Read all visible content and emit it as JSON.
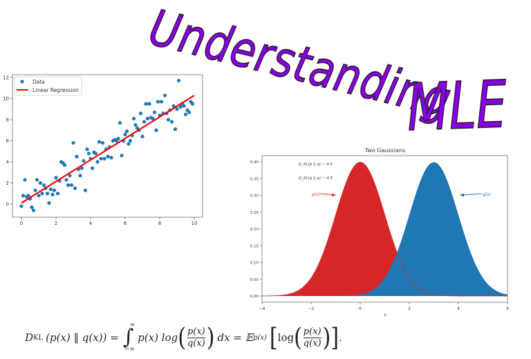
{
  "title": {
    "text": "Understanding MLE",
    "part1": "Understanding",
    "part2": "MLE",
    "fill_color": "#8a00e6",
    "stroke_color": "#2b1a33"
  },
  "chart_data": [
    {
      "type": "scatter",
      "title": "",
      "xlabel": "",
      "ylabel": "",
      "xlim": [
        -0.5,
        10.4
      ],
      "ylim": [
        -1.2,
        12.4
      ],
      "xticks": [
        "0",
        "2",
        "4",
        "6",
        "8",
        "10"
      ],
      "yticks": [
        "0",
        "2",
        "4",
        "6",
        "8",
        "10",
        "12"
      ],
      "legend": {
        "position": "upper left",
        "entries": [
          "Data",
          "Linear Regression"
        ]
      },
      "grid": false,
      "series": [
        {
          "name": "Data",
          "kind": "scatter",
          "color": "#1f77b4",
          "points": [
            [
              0.0,
              -0.2
            ],
            [
              0.1,
              0.8
            ],
            [
              0.2,
              2.3
            ],
            [
              0.3,
              0.7
            ],
            [
              0.4,
              0.8
            ],
            [
              0.5,
              0.5
            ],
            [
              0.6,
              -0.3
            ],
            [
              0.7,
              -0.6
            ],
            [
              0.8,
              1.3
            ],
            [
              0.9,
              2.3
            ],
            [
              1.0,
              0.8
            ],
            [
              1.1,
              2.0
            ],
            [
              1.2,
              1.0
            ],
            [
              1.3,
              1.8
            ],
            [
              1.4,
              1.5
            ],
            [
              1.5,
              1.0
            ],
            [
              1.6,
              0.1
            ],
            [
              1.7,
              1.4
            ],
            [
              1.8,
              0.9
            ],
            [
              1.9,
              1.3
            ],
            [
              2.0,
              2.5
            ],
            [
              2.1,
              1.0
            ],
            [
              2.2,
              2.2
            ],
            [
              2.3,
              4.0
            ],
            [
              2.4,
              3.9
            ],
            [
              2.5,
              3.7
            ],
            [
              2.6,
              2.3
            ],
            [
              2.7,
              1.8
            ],
            [
              2.8,
              2.7
            ],
            [
              2.9,
              1.8
            ],
            [
              3.0,
              5.8
            ],
            [
              3.1,
              1.5
            ],
            [
              3.2,
              4.5
            ],
            [
              3.3,
              3.3
            ],
            [
              3.4,
              2.7
            ],
            [
              3.5,
              3.4
            ],
            [
              3.6,
              4.1
            ],
            [
              3.7,
              1.3
            ],
            [
              3.8,
              5.2
            ],
            [
              3.9,
              4.8
            ],
            [
              4.0,
              4.3
            ],
            [
              4.1,
              3.4
            ],
            [
              4.2,
              4.9
            ],
            [
              4.3,
              4.8
            ],
            [
              4.4,
              4.0
            ],
            [
              4.5,
              5.9
            ],
            [
              4.6,
              4.3
            ],
            [
              4.7,
              5.8
            ],
            [
              4.8,
              4.3
            ],
            [
              4.9,
              5.2
            ],
            [
              5.0,
              4.5
            ],
            [
              5.1,
              5.4
            ],
            [
              5.2,
              4.4
            ],
            [
              5.3,
              6.0
            ],
            [
              5.4,
              6.1
            ],
            [
              5.5,
              6.0
            ],
            [
              5.6,
              6.2
            ],
            [
              5.7,
              7.7
            ],
            [
              5.8,
              4.6
            ],
            [
              5.9,
              6.0
            ],
            [
              6.0,
              6.6
            ],
            [
              6.1,
              6.9
            ],
            [
              6.2,
              5.7
            ],
            [
              6.3,
              6.0
            ],
            [
              6.4,
              6.5
            ],
            [
              6.5,
              8.1
            ],
            [
              6.6,
              7.5
            ],
            [
              6.7,
              7.2
            ],
            [
              6.8,
              7.0
            ],
            [
              6.9,
              8.6
            ],
            [
              7.0,
              6.4
            ],
            [
              7.1,
              7.8
            ],
            [
              7.2,
              9.5
            ],
            [
              7.3,
              8.1
            ],
            [
              7.4,
              9.5
            ],
            [
              7.5,
              8.2
            ],
            [
              7.6,
              8.1
            ],
            [
              7.7,
              8.7
            ],
            [
              7.8,
              7.0
            ],
            [
              7.9,
              9.7
            ],
            [
              8.0,
              8.4
            ],
            [
              8.1,
              9.7
            ],
            [
              8.2,
              8.6
            ],
            [
              8.3,
              10.3
            ],
            [
              8.4,
              8.6
            ],
            [
              8.5,
              8.0
            ],
            [
              8.6,
              8.9
            ],
            [
              8.7,
              7.8
            ],
            [
              8.8,
              9.3
            ],
            [
              8.9,
              7.1
            ],
            [
              9.0,
              9.0
            ],
            [
              9.1,
              11.7
            ],
            [
              9.2,
              9.2
            ],
            [
              9.3,
              9.5
            ],
            [
              9.4,
              9.3
            ],
            [
              9.5,
              8.5
            ],
            [
              9.6,
              8.9
            ],
            [
              9.7,
              8.7
            ],
            [
              9.8,
              9.7
            ],
            [
              9.9,
              9.5
            ]
          ]
        },
        {
          "name": "Linear Regression",
          "kind": "line",
          "color": "#ff0000",
          "points": [
            [
              0,
              0.1
            ],
            [
              10,
              10.3
            ]
          ]
        }
      ]
    },
    {
      "type": "area",
      "title": "Two Gaussians",
      "xlabel": "x",
      "ylabel": "",
      "xlim": [
        -4,
        6
      ],
      "ylim": [
        -0.02,
        0.42
      ],
      "xticks": [
        "−4",
        "−2",
        "0",
        "2",
        "4",
        "6"
      ],
      "yticks": [
        "0.00",
        "0.05",
        "0.10",
        "0.15",
        "0.20",
        "0.25",
        "0.30",
        "0.35",
        "0.40"
      ],
      "grid": false,
      "series": [
        {
          "name": "p(x)",
          "mean": 0,
          "std": 1,
          "peak": 0.3989,
          "color": "#d62728"
        },
        {
          "name": "q(x)",
          "mean": 3,
          "std": 1,
          "peak": 0.3989,
          "color": "#1f77b4"
        }
      ],
      "annotations": [
        {
          "text": "D_KL(p || q) ~ 4.5",
          "x": -2.6,
          "y": 0.39
        },
        {
          "text": "D_KL(q || p) ~ 4.5",
          "x": -2.6,
          "y": 0.35
        },
        {
          "text": "p(x)",
          "x": -2.0,
          "y": 0.3,
          "arrow_to": [
            -1.0,
            0.3
          ],
          "color": "#d62728"
        },
        {
          "text": "q(x)",
          "x": 5.0,
          "y": 0.305,
          "arrow_to": [
            4.0,
            0.3
          ],
          "color": "#1f77b4"
        }
      ]
    }
  ],
  "formula": {
    "lhs_D": "D",
    "lhs_sub": "KL",
    "lhs_args": "(p(x) ‖ q(x)) =",
    "int_upper": "∞",
    "int_lower": "−∞",
    "integrand": "p(x) log",
    "num": "p(x)",
    "den": "q(x)",
    "dx": "dx = 𝔼",
    "exp_sub": "p(x)",
    "log": "log",
    "end": "."
  }
}
